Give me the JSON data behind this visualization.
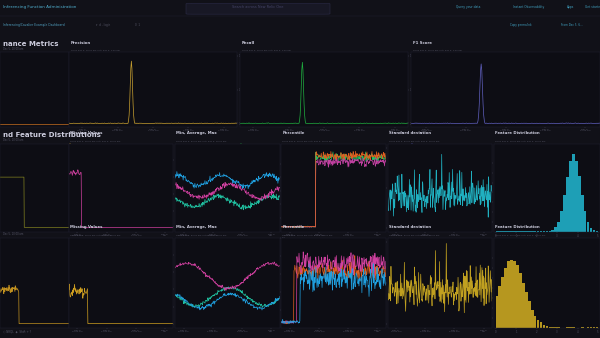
{
  "bg_color": "#111118",
  "panel_bg": "#0d0d14",
  "border_color": "#222233",
  "dim_text": "#555566",
  "header_text": "#aaaacc",
  "bright_text": "#ccccdd",
  "nav_bg": "#0a0a12",
  "subnav_bg": "#0e0e18",
  "section_bg": "#111118",
  "row1_left_line_color": "#c87020",
  "precision_color": "#c8a030",
  "recall_color": "#20b040",
  "f1_color": "#6060c0",
  "row2_missing_color": "#d040a0",
  "row2_min_color": "#20c0a0",
  "row2_avg_color": "#d040a0",
  "row2_max_color": "#20a0e0",
  "row2_pct25_color": "#20c060",
  "row2_pct50_color": "#c040a0",
  "row2_pct75_color": "#e06020",
  "row2_std_color": "#20b0c0",
  "row2_bar_color": "#20a8c0",
  "row3_missing_color": "#d0a020",
  "row3_min_color": "#20c0a0",
  "row3_avg_color": "#d040a0",
  "row3_max_color": "#20a0e0",
  "row3_pct25_color": "#e06020",
  "row3_pct50_color": "#d040a0",
  "row3_pct75_color": "#20a0e0",
  "row3_std_color": "#c0a020",
  "row3_bar_color": "#c0a020"
}
